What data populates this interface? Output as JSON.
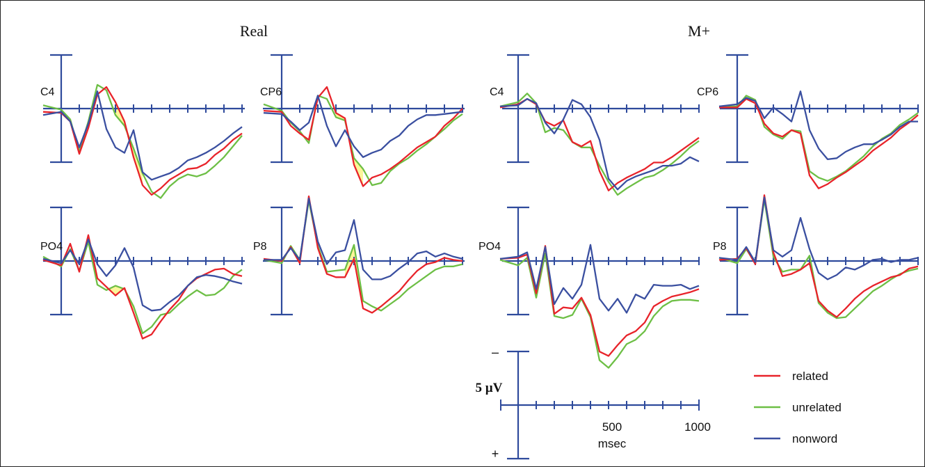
{
  "figure": {
    "group_titles": [
      "Real",
      "M+"
    ],
    "legend": [
      {
        "label": "related",
        "color": "#e8232a"
      },
      {
        "label": "unrelated",
        "color": "#6dbf45"
      },
      {
        "label": "nonword",
        "color": "#3a4fa0"
      }
    ],
    "scale_bar": {
      "amplitude_label": "5 µV",
      "neg_label": "–",
      "pos_label": "+",
      "x_tick_labels": [
        "500",
        "1000"
      ],
      "x_unit_label": "msec"
    }
  },
  "colors": {
    "axis": "#2e4a9c",
    "related": "#e8232a",
    "unrelated": "#6dbf45",
    "nonword": "#3a4fa0",
    "highlight": "#fbf59a"
  },
  "chart_data": [
    {
      "type": "line",
      "group": "Real",
      "electrode": "C4",
      "xlim": [
        -100,
        1000
      ],
      "ylim_uV": [
        -5,
        5
      ],
      "x_unit": "msec",
      "y_unit": "µV",
      "negative_up": true,
      "highlight": [
        300,
        450
      ],
      "x": [
        -100,
        0,
        50,
        100,
        150,
        200,
        250,
        300,
        350,
        400,
        450,
        500,
        550,
        600,
        650,
        700,
        750,
        800,
        850,
        900,
        950,
        1000
      ],
      "series": [
        {
          "name": "related",
          "values": [
            -0.3,
            -0.4,
            -1.2,
            -4.2,
            -1.8,
            1.3,
            2.0,
            0.6,
            -1.2,
            -4.5,
            -7.1,
            -8.0,
            -7.4,
            -6.6,
            -6.1,
            -5.6,
            -5.5,
            -5.1,
            -4.3,
            -3.7,
            -2.9,
            -2.3
          ]
        },
        {
          "name": "unrelated",
          "values": [
            0.3,
            -0.1,
            -1.0,
            -4.0,
            -1.2,
            2.2,
            1.7,
            -0.6,
            -1.6,
            -3.7,
            -6.0,
            -7.7,
            -8.3,
            -7.2,
            -6.5,
            -6.1,
            -6.3,
            -6.0,
            -5.3,
            -4.5,
            -3.5,
            -2.5
          ]
        },
        {
          "name": "nonword",
          "values": [
            -0.6,
            -0.3,
            -1.2,
            -3.6,
            -1.4,
            1.6,
            -1.9,
            -3.6,
            -4.1,
            -2.0,
            -5.9,
            -6.6,
            -6.3,
            -6.0,
            -5.5,
            -4.8,
            -4.5,
            -4.1,
            -3.6,
            -3.0,
            -2.3,
            -1.7
          ]
        }
      ]
    },
    {
      "type": "line",
      "group": "Real",
      "electrode": "CP6",
      "xlim": [
        -100,
        1000
      ],
      "ylim_uV": [
        -5,
        5
      ],
      "x_unit": "msec",
      "y_unit": "µV",
      "negative_up": true,
      "highlight": [
        300,
        450
      ],
      "x": [
        -100,
        0,
        50,
        100,
        150,
        200,
        250,
        300,
        350,
        400,
        450,
        500,
        550,
        600,
        650,
        700,
        750,
        800,
        850,
        900,
        950,
        1000
      ],
      "series": [
        {
          "name": "related",
          "values": [
            -0.2,
            -0.3,
            -1.6,
            -2.3,
            -2.9,
            1.0,
            2.0,
            -0.4,
            -0.9,
            -5.2,
            -7.2,
            -6.4,
            -6.1,
            -5.6,
            -5.0,
            -4.3,
            -3.6,
            -3.1,
            -2.6,
            -1.6,
            -0.9,
            0
          ]
        },
        {
          "name": "unrelated",
          "values": [
            0.4,
            -0.2,
            -1.3,
            -2.1,
            -3.2,
            1.2,
            0.9,
            -0.8,
            -1.1,
            -4.6,
            -5.6,
            -7.1,
            -6.9,
            -5.8,
            -5.1,
            -4.6,
            -3.9,
            -3.3,
            -2.6,
            -1.9,
            -1.1,
            -0.5
          ]
        },
        {
          "name": "nonword",
          "values": [
            -0.4,
            -0.5,
            -1.2,
            -2.0,
            -1.3,
            1.2,
            -1.6,
            -3.5,
            -2.0,
            -3.5,
            -4.5,
            -4.1,
            -3.8,
            -3.0,
            -2.5,
            -1.6,
            -1.0,
            -0.6,
            -0.6,
            -0.5,
            -0.4,
            -0.3
          ]
        }
      ]
    },
    {
      "type": "line",
      "group": "M+",
      "electrode": "C4",
      "xlim": [
        -100,
        1000
      ],
      "ylim_uV": [
        -5,
        5
      ],
      "x_unit": "msec",
      "y_unit": "µV",
      "negative_up": true,
      "x": [
        -100,
        0,
        50,
        100,
        150,
        200,
        250,
        300,
        350,
        400,
        450,
        500,
        550,
        600,
        650,
        700,
        750,
        800,
        850,
        900,
        950,
        1000
      ],
      "series": [
        {
          "name": "related",
          "values": [
            0.1,
            0.4,
            0.9,
            0.4,
            -1.2,
            -1.6,
            -1.1,
            -3.1,
            -3.5,
            -3.0,
            -5.8,
            -7.6,
            -6.9,
            -6.4,
            -6.0,
            -5.6,
            -5.0,
            -5.0,
            -4.5,
            -3.9,
            -3.3,
            -2.7
          ]
        },
        {
          "name": "unrelated",
          "values": [
            0.2,
            0.6,
            1.4,
            0.5,
            -2.2,
            -1.8,
            -2.0,
            -3.1,
            -3.6,
            -3.6,
            -5.3,
            -6.8,
            -8.0,
            -7.4,
            -6.9,
            -6.4,
            -6.2,
            -5.7,
            -5.1,
            -4.4,
            -3.6,
            -3.0
          ]
        },
        {
          "name": "nonword",
          "values": [
            0.2,
            0.3,
            0.9,
            0.5,
            -1.3,
            -2.3,
            -1.0,
            0.8,
            0.4,
            -0.8,
            -2.9,
            -6.5,
            -7.5,
            -6.7,
            -6.3,
            -6.0,
            -5.7,
            -5.3,
            -5.3,
            -5.1,
            -4.5,
            -4.9
          ]
        }
      ]
    },
    {
      "type": "line",
      "group": "M+",
      "electrode": "CP6",
      "xlim": [
        -100,
        1000
      ],
      "ylim_uV": [
        -5,
        5
      ],
      "x_unit": "msec",
      "y_unit": "µV",
      "negative_up": true,
      "x": [
        -100,
        0,
        50,
        100,
        150,
        200,
        250,
        300,
        350,
        400,
        450,
        500,
        550,
        600,
        650,
        700,
        750,
        800,
        850,
        900,
        950,
        1000
      ],
      "series": [
        {
          "name": "related",
          "values": [
            0.1,
            0.1,
            0.9,
            0.5,
            -1.4,
            -2.3,
            -2.6,
            -2.0,
            -2.3,
            -6.2,
            -7.4,
            -7.0,
            -6.4,
            -5.9,
            -5.3,
            -4.7,
            -3.9,
            -3.3,
            -2.7,
            -1.9,
            -1.3,
            -0.6
          ]
        },
        {
          "name": "unrelated",
          "values": [
            0.2,
            0.2,
            1.2,
            0.8,
            -1.7,
            -2.4,
            -2.8,
            -2.0,
            -2.1,
            -5.8,
            -6.4,
            -6.7,
            -6.3,
            -5.8,
            -5.1,
            -4.4,
            -3.5,
            -2.8,
            -2.3,
            -1.5,
            -1.0,
            -0.4
          ]
        },
        {
          "name": "nonword",
          "values": [
            0.2,
            0.4,
            1.0,
            0.7,
            -0.9,
            0.1,
            -0.5,
            -1.2,
            1.6,
            -2.0,
            -3.7,
            -4.7,
            -4.6,
            -4.0,
            -3.6,
            -3.3,
            -3.3,
            -2.9,
            -2.4,
            -1.7,
            -1.2,
            -1.2
          ]
        }
      ]
    },
    {
      "type": "line",
      "group": "Real",
      "electrode": "PO4",
      "xlim": [
        -100,
        1000
      ],
      "ylim_uV": [
        -5,
        5
      ],
      "x_unit": "msec",
      "y_unit": "µV",
      "negative_up": true,
      "highlight": [
        250,
        400
      ],
      "x": [
        -100,
        0,
        50,
        100,
        150,
        200,
        250,
        300,
        350,
        400,
        450,
        500,
        550,
        600,
        650,
        700,
        750,
        800,
        850,
        900,
        950,
        1000
      ],
      "series": [
        {
          "name": "related",
          "values": [
            0.1,
            -0.4,
            1.6,
            -1.0,
            2.4,
            -1.6,
            -2.4,
            -3.2,
            -2.5,
            -4.8,
            -7.2,
            -6.8,
            -5.6,
            -4.5,
            -3.6,
            -2.3,
            -1.6,
            -1.2,
            -0.8,
            -0.7,
            -1.2,
            -1.4
          ]
        },
        {
          "name": "unrelated",
          "values": [
            0.4,
            -0.5,
            1.1,
            -0.9,
            1.8,
            -2.2,
            -2.7,
            -2.3,
            -2.6,
            -4.2,
            -6.7,
            -6.1,
            -5.0,
            -4.8,
            -4.0,
            -3.3,
            -2.7,
            -3.2,
            -3.1,
            -2.5,
            -1.4,
            -0.8
          ]
        },
        {
          "name": "nonword",
          "values": [
            0.2,
            -0.2,
            1.0,
            -0.3,
            2.0,
            -0.3,
            -1.4,
            -0.4,
            1.2,
            -0.6,
            -4.1,
            -4.6,
            -4.5,
            -3.8,
            -3.2,
            -2.3,
            -1.5,
            -1.3,
            -1.4,
            -1.6,
            -1.9,
            -2.1
          ]
        }
      ]
    },
    {
      "type": "line",
      "group": "Real",
      "electrode": "P8",
      "xlim": [
        -100,
        1000
      ],
      "ylim_uV": [
        -5,
        5
      ],
      "x_unit": "msec",
      "y_unit": "µV",
      "negative_up": true,
      "highlight": [
        350,
        450
      ],
      "x": [
        -100,
        0,
        50,
        100,
        150,
        200,
        250,
        300,
        350,
        400,
        450,
        500,
        550,
        600,
        650,
        700,
        750,
        800,
        850,
        900,
        950,
        1000
      ],
      "series": [
        {
          "name": "related",
          "values": [
            0.2,
            0,
            1.3,
            -0.2,
            6.0,
            1.2,
            -1.2,
            -1.5,
            -1.5,
            0.2,
            -4.4,
            -4.8,
            -4.2,
            -3.5,
            -2.8,
            -1.8,
            -0.9,
            -0.3,
            -0.1,
            0.3,
            0.1,
            0
          ]
        },
        {
          "name": "unrelated",
          "values": [
            0.1,
            -0.2,
            1.4,
            0.1,
            5.6,
            1.4,
            -1.0,
            -0.9,
            -0.8,
            1.5,
            -3.7,
            -4.2,
            -4.6,
            -4.0,
            -3.4,
            -2.6,
            -2.0,
            -1.4,
            -0.8,
            -0.5,
            -0.5,
            -0.3
          ]
        },
        {
          "name": "nonword",
          "values": [
            0.1,
            0.1,
            1.2,
            0.1,
            5.8,
            1.8,
            -0.3,
            0.8,
            1.0,
            3.8,
            -0.8,
            -1.7,
            -1.7,
            -1.4,
            -0.7,
            -0.1,
            0.7,
            0.9,
            0.4,
            0.7,
            0.4,
            0.2
          ]
        }
      ]
    },
    {
      "type": "line",
      "group": "M+",
      "electrode": "PO4",
      "xlim": [
        -100,
        1000
      ],
      "ylim_uV": [
        -5,
        5
      ],
      "x_unit": "msec",
      "y_unit": "µV",
      "negative_up": true,
      "x": [
        -100,
        0,
        50,
        100,
        150,
        200,
        250,
        300,
        350,
        400,
        450,
        500,
        550,
        600,
        650,
        700,
        750,
        800,
        850,
        900,
        950,
        1000
      ],
      "series": [
        {
          "name": "related",
          "values": [
            0.2,
            0.3,
            0.6,
            -3.0,
            1.4,
            -4.9,
            -4.3,
            -4.4,
            -3.4,
            -5.0,
            -8.4,
            -8.8,
            -7.8,
            -6.9,
            -6.5,
            -5.7,
            -4.2,
            -3.7,
            -3.3,
            -3.1,
            -2.9,
            -2.6
          ]
        },
        {
          "name": "unrelated",
          "values": [
            0.1,
            -0.4,
            0.3,
            -3.4,
            0.7,
            -5.1,
            -5.3,
            -5.0,
            -3.5,
            -5.2,
            -9.2,
            -9.9,
            -8.9,
            -7.7,
            -7.3,
            -6.5,
            -5.1,
            -4.2,
            -3.7,
            -3.6,
            -3.6,
            -3.7
          ]
        },
        {
          "name": "nonword",
          "values": [
            0.2,
            0.4,
            0.8,
            -2.6,
            1.3,
            -4.0,
            -2.5,
            -3.5,
            -2.2,
            1.5,
            -3.5,
            -4.6,
            -3.5,
            -4.8,
            -3.1,
            -3.5,
            -2.2,
            -2.3,
            -2.3,
            -2.2,
            -2.6,
            -2.3
          ]
        }
      ]
    },
    {
      "type": "line",
      "group": "M+",
      "electrode": "P8",
      "xlim": [
        -100,
        1000
      ],
      "ylim_uV": [
        -5,
        5
      ],
      "x_unit": "msec",
      "y_unit": "µV",
      "negative_up": true,
      "x": [
        -100,
        0,
        50,
        100,
        150,
        200,
        250,
        300,
        350,
        400,
        450,
        500,
        550,
        600,
        650,
        700,
        750,
        800,
        850,
        900,
        950,
        1000
      ],
      "series": [
        {
          "name": "related",
          "values": [
            0.1,
            0.2,
            1.2,
            -0.3,
            6.1,
            0.8,
            -1.4,
            -1.2,
            -0.8,
            -0.2,
            -3.7,
            -4.6,
            -5.2,
            -4.4,
            -3.5,
            -2.8,
            -2.3,
            -1.9,
            -1.5,
            -1.3,
            -0.7,
            -0.5
          ]
        },
        {
          "name": "unrelated",
          "values": [
            0.3,
            -0.2,
            1.1,
            -0.2,
            5.7,
            0.4,
            -1.0,
            -0.8,
            -0.8,
            0.5,
            -3.9,
            -4.8,
            -5.3,
            -5.2,
            -4.4,
            -3.6,
            -2.8,
            -2.3,
            -1.7,
            -1.2,
            -0.9,
            -0.7
          ]
        },
        {
          "name": "nonword",
          "values": [
            0.3,
            0.1,
            1.3,
            -0.1,
            5.9,
            1.0,
            0.4,
            1.0,
            4.0,
            1.1,
            -1.1,
            -1.7,
            -1.3,
            -0.6,
            -0.8,
            -0.4,
            0.1,
            0.2,
            -0.1,
            0.1,
            0.1,
            0.3
          ]
        }
      ]
    }
  ]
}
